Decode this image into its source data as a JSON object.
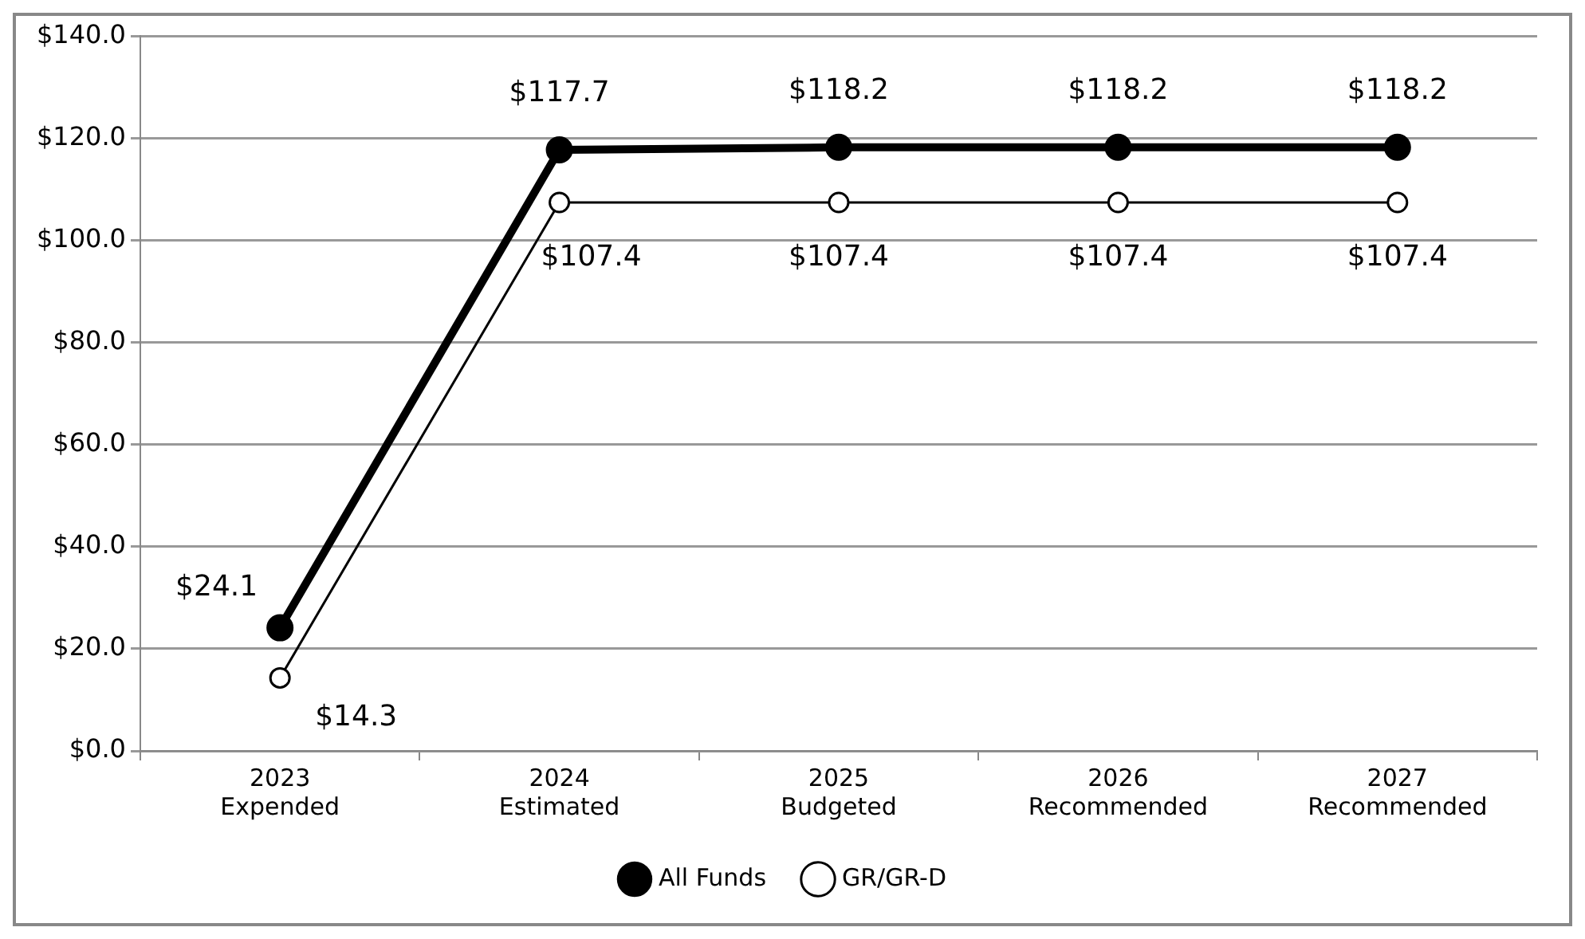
{
  "chart_data": {
    "type": "line",
    "categories": [
      "2023\nExpended",
      "2024\nEstimated",
      "2025\nBudgeted",
      "2026\nRecommended",
      "2027\nRecommended"
    ],
    "series": [
      {
        "name": "All Funds",
        "color": "#000000",
        "values": [
          24.1,
          117.7,
          118.2,
          118.2,
          118.2
        ],
        "value_labels": [
          "$24.1",
          "$117.7",
          "$118.2",
          "$118.2",
          "$118.2"
        ]
      },
      {
        "name": "GR/GR-D",
        "color": "#000000",
        "values": [
          14.3,
          107.4,
          107.4,
          107.4,
          107.4
        ],
        "value_labels": [
          "$14.3",
          "$107.4",
          "$107.4",
          "$107.4",
          "$107.4"
        ]
      }
    ],
    "ylim": [
      0,
      140
    ],
    "yticks": [
      {
        "value": 0,
        "label": "$0.0"
      },
      {
        "value": 20,
        "label": "$20.0"
      },
      {
        "value": 40,
        "label": "$40.0"
      },
      {
        "value": 60,
        "label": "$60.0"
      },
      {
        "value": 80,
        "label": "$80.0"
      },
      {
        "value": 100,
        "label": "$100.0"
      },
      {
        "value": 120,
        "label": "$120.0"
      },
      {
        "value": 140,
        "label": "$140.0"
      }
    ],
    "grid": "y",
    "legend": "bottom",
    "marker": "circle",
    "line_style": "solid"
  }
}
